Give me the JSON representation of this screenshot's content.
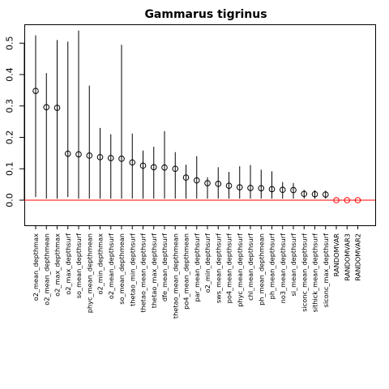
{
  "chart_data": {
    "type": "scatter",
    "title": "Gammarus tigrinus",
    "xlabel": "",
    "ylabel": "",
    "ylim": [
      -0.08,
      0.56
    ],
    "yticks": [
      0.0,
      0.1,
      0.2,
      0.3,
      0.4,
      0.5
    ],
    "ytick_labels": [
      "0.0",
      "0.1",
      "0.2",
      "0.3",
      "0.4",
      "0.5"
    ],
    "reference_line": {
      "y": 0,
      "color": "#ff0000"
    },
    "random_point_color": "#ff0000",
    "categories": [
      "o2_mean_depthmax",
      "o2_mean_depthmean",
      "o2_max_depthmax",
      "o2_max_depthsurf",
      "so_mean_depthsurf",
      "phyc_mean_depthmean",
      "o2_min_depthmax",
      "o2_mean_depthsurf",
      "so_mean_depthmean",
      "thetao_min_depthsurf",
      "thetao_mean_depthsurf",
      "thetao_max_depthsurf",
      "dfe_mean_depthsurf",
      "thetao_mean_depthmean",
      "po4_mean_depthmean",
      "par_mean_depthsurf",
      "o2_min_depthsurf",
      "sws_mean_depthsurf",
      "po4_mean_depthsurf",
      "phyc_mean_depthsurf",
      "chl_mean_depthsurf",
      "ph_mean_depthmean",
      "ph_mean_depthsurf",
      "no3_mean_depthsurf",
      "si_mean_depthsurf",
      "siconc_mean_depthsurf",
      "sithick_mean_depthsurf",
      "siconc_max_depthsurf",
      "RANDOMVAR",
      "RANDOMVAR3",
      "RANDOMVAR2"
    ],
    "values": [
      0.348,
      0.296,
      0.294,
      0.148,
      0.146,
      0.142,
      0.137,
      0.134,
      0.132,
      0.12,
      0.11,
      0.105,
      0.104,
      0.1,
      0.072,
      0.063,
      0.054,
      0.052,
      0.046,
      0.041,
      0.039,
      0.038,
      0.035,
      0.033,
      0.032,
      0.02,
      0.019,
      0.018,
      0.0,
      0.0,
      0.0
    ],
    "lower": [
      0.01,
      0.005,
      0.005,
      0.01,
      0.005,
      0.005,
      0.005,
      0.005,
      0.005,
      0.005,
      0.005,
      0.005,
      0.005,
      0.005,
      0.005,
      0.005,
      0.005,
      0.005,
      0.005,
      0.005,
      0.005,
      0.005,
      0.005,
      0.005,
      0.005,
      0.005,
      0.005,
      0.005,
      0.0,
      0.0,
      0.0
    ],
    "upper": [
      0.525,
      0.405,
      0.51,
      0.505,
      0.54,
      0.365,
      0.23,
      0.21,
      0.495,
      0.212,
      0.158,
      0.17,
      0.22,
      0.153,
      0.113,
      0.14,
      0.073,
      0.105,
      0.09,
      0.108,
      0.112,
      0.097,
      0.092,
      0.058,
      0.055,
      0.033,
      0.032,
      0.03,
      0.0,
      0.0,
      0.0
    ],
    "random_categories": [
      "RANDOMVAR",
      "RANDOMVAR3",
      "RANDOMVAR2"
    ],
    "grid": false,
    "legend": "none"
  }
}
